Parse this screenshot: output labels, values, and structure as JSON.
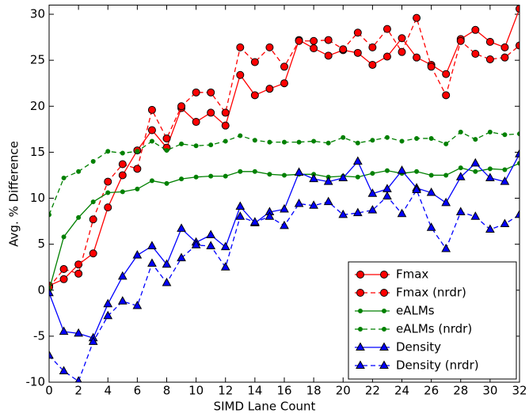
{
  "chart_data": {
    "type": "line",
    "xlabel": "SIMD Lane Count",
    "ylabel": "Avg. % Difference",
    "x": [
      0,
      1,
      2,
      3,
      4,
      5,
      6,
      7,
      8,
      9,
      10,
      11,
      12,
      13,
      14,
      15,
      16,
      17,
      18,
      19,
      20,
      21,
      22,
      23,
      24,
      25,
      26,
      27,
      28,
      29,
      30,
      31,
      32
    ],
    "xlim": [
      0,
      32
    ],
    "xticks": [
      0,
      2,
      4,
      6,
      8,
      10,
      12,
      14,
      16,
      18,
      20,
      22,
      24,
      26,
      28,
      30,
      32
    ],
    "ylim": [
      -10,
      31
    ],
    "yticks": [
      -10,
      -5,
      0,
      5,
      10,
      15,
      20,
      25,
      30
    ],
    "legend": "lower right",
    "series": [
      {
        "name": "Fmax",
        "color": "#ff0000",
        "linestyle": "solid",
        "marker": "o",
        "values": [
          0.5,
          1.2,
          2.8,
          4,
          9,
          12.5,
          15.2,
          17.4,
          15.5,
          19.8,
          18.3,
          19.3,
          17.9,
          23.4,
          21.2,
          21.9,
          22.5,
          27.2,
          26.3,
          25.5,
          26.1,
          25.8,
          24.5,
          25.4,
          27.4,
          25.3,
          24.5,
          23.5,
          27.3,
          28.3,
          27,
          26.4,
          30.6
        ]
      },
      {
        "name": "Fmax (nrdr)",
        "color": "#ff0000",
        "linestyle": "dashed",
        "marker": "o",
        "values": [
          0.3,
          2.3,
          1.8,
          7.7,
          11.8,
          13.7,
          13.2,
          19.6,
          16.5,
          20,
          21.5,
          21.5,
          19.3,
          26.4,
          24.8,
          26.4,
          24.3,
          27.1,
          27.1,
          27.2,
          26.2,
          28,
          26.4,
          28.4,
          25.9,
          29.6,
          24.3,
          21.2,
          27.1,
          25.7,
          25.1,
          25.3,
          26.6
        ]
      },
      {
        "name": "eALMs",
        "color": "#008000",
        "linestyle": "solid",
        "marker": ".",
        "values": [
          0,
          5.8,
          7.9,
          9.6,
          10.6,
          10.7,
          11,
          11.9,
          11.6,
          12.1,
          12.3,
          12.4,
          12.4,
          12.9,
          12.9,
          12.6,
          12.5,
          12.6,
          12.6,
          12.3,
          12.4,
          12.3,
          12.7,
          13,
          12.7,
          12.9,
          12.5,
          12.5,
          13.3,
          12.9,
          13.2,
          13.1,
          13.8
        ]
      },
      {
        "name": "eALMs (nrdr)",
        "color": "#008000",
        "linestyle": "dashed",
        "marker": ".",
        "values": [
          8.2,
          12.2,
          12.9,
          14,
          15.1,
          14.9,
          15.1,
          16.2,
          15.2,
          15.9,
          15.7,
          15.8,
          16.2,
          16.8,
          16.3,
          16.1,
          16.1,
          16.1,
          16.2,
          16,
          16.6,
          16,
          16.3,
          16.6,
          16.2,
          16.5,
          16.5,
          15.9,
          17.2,
          16.4,
          17.2,
          16.9,
          17
        ]
      },
      {
        "name": "Density",
        "color": "#0000ff",
        "linestyle": "solid",
        "marker": "^",
        "values": [
          -0.3,
          -4.5,
          -4.7,
          -5.2,
          -1.5,
          1.5,
          3.8,
          4.8,
          2.8,
          6.7,
          5.2,
          6,
          4.7,
          9.1,
          7.3,
          8.5,
          8.8,
          12.8,
          12.1,
          11.8,
          12.2,
          14,
          10.5,
          11,
          13,
          11.1,
          10.6,
          9.5,
          12.3,
          13.8,
          12.2,
          11.8,
          14.8
        ]
      },
      {
        "name": "Density (nrdr)",
        "color": "#0000ff",
        "linestyle": "dashed",
        "marker": "^",
        "values": [
          -7.1,
          -8.8,
          -9.9,
          -5.6,
          -2.8,
          -1.2,
          -1.7,
          2.9,
          0.8,
          3.5,
          4.9,
          4.8,
          2.5,
          8,
          7.4,
          8,
          7,
          9.4,
          9.2,
          9.6,
          8.2,
          8.4,
          8.7,
          10.2,
          8.3,
          10.9,
          6.8,
          4.5,
          8.5,
          8,
          6.6,
          7.2,
          8.2
        ]
      }
    ]
  }
}
